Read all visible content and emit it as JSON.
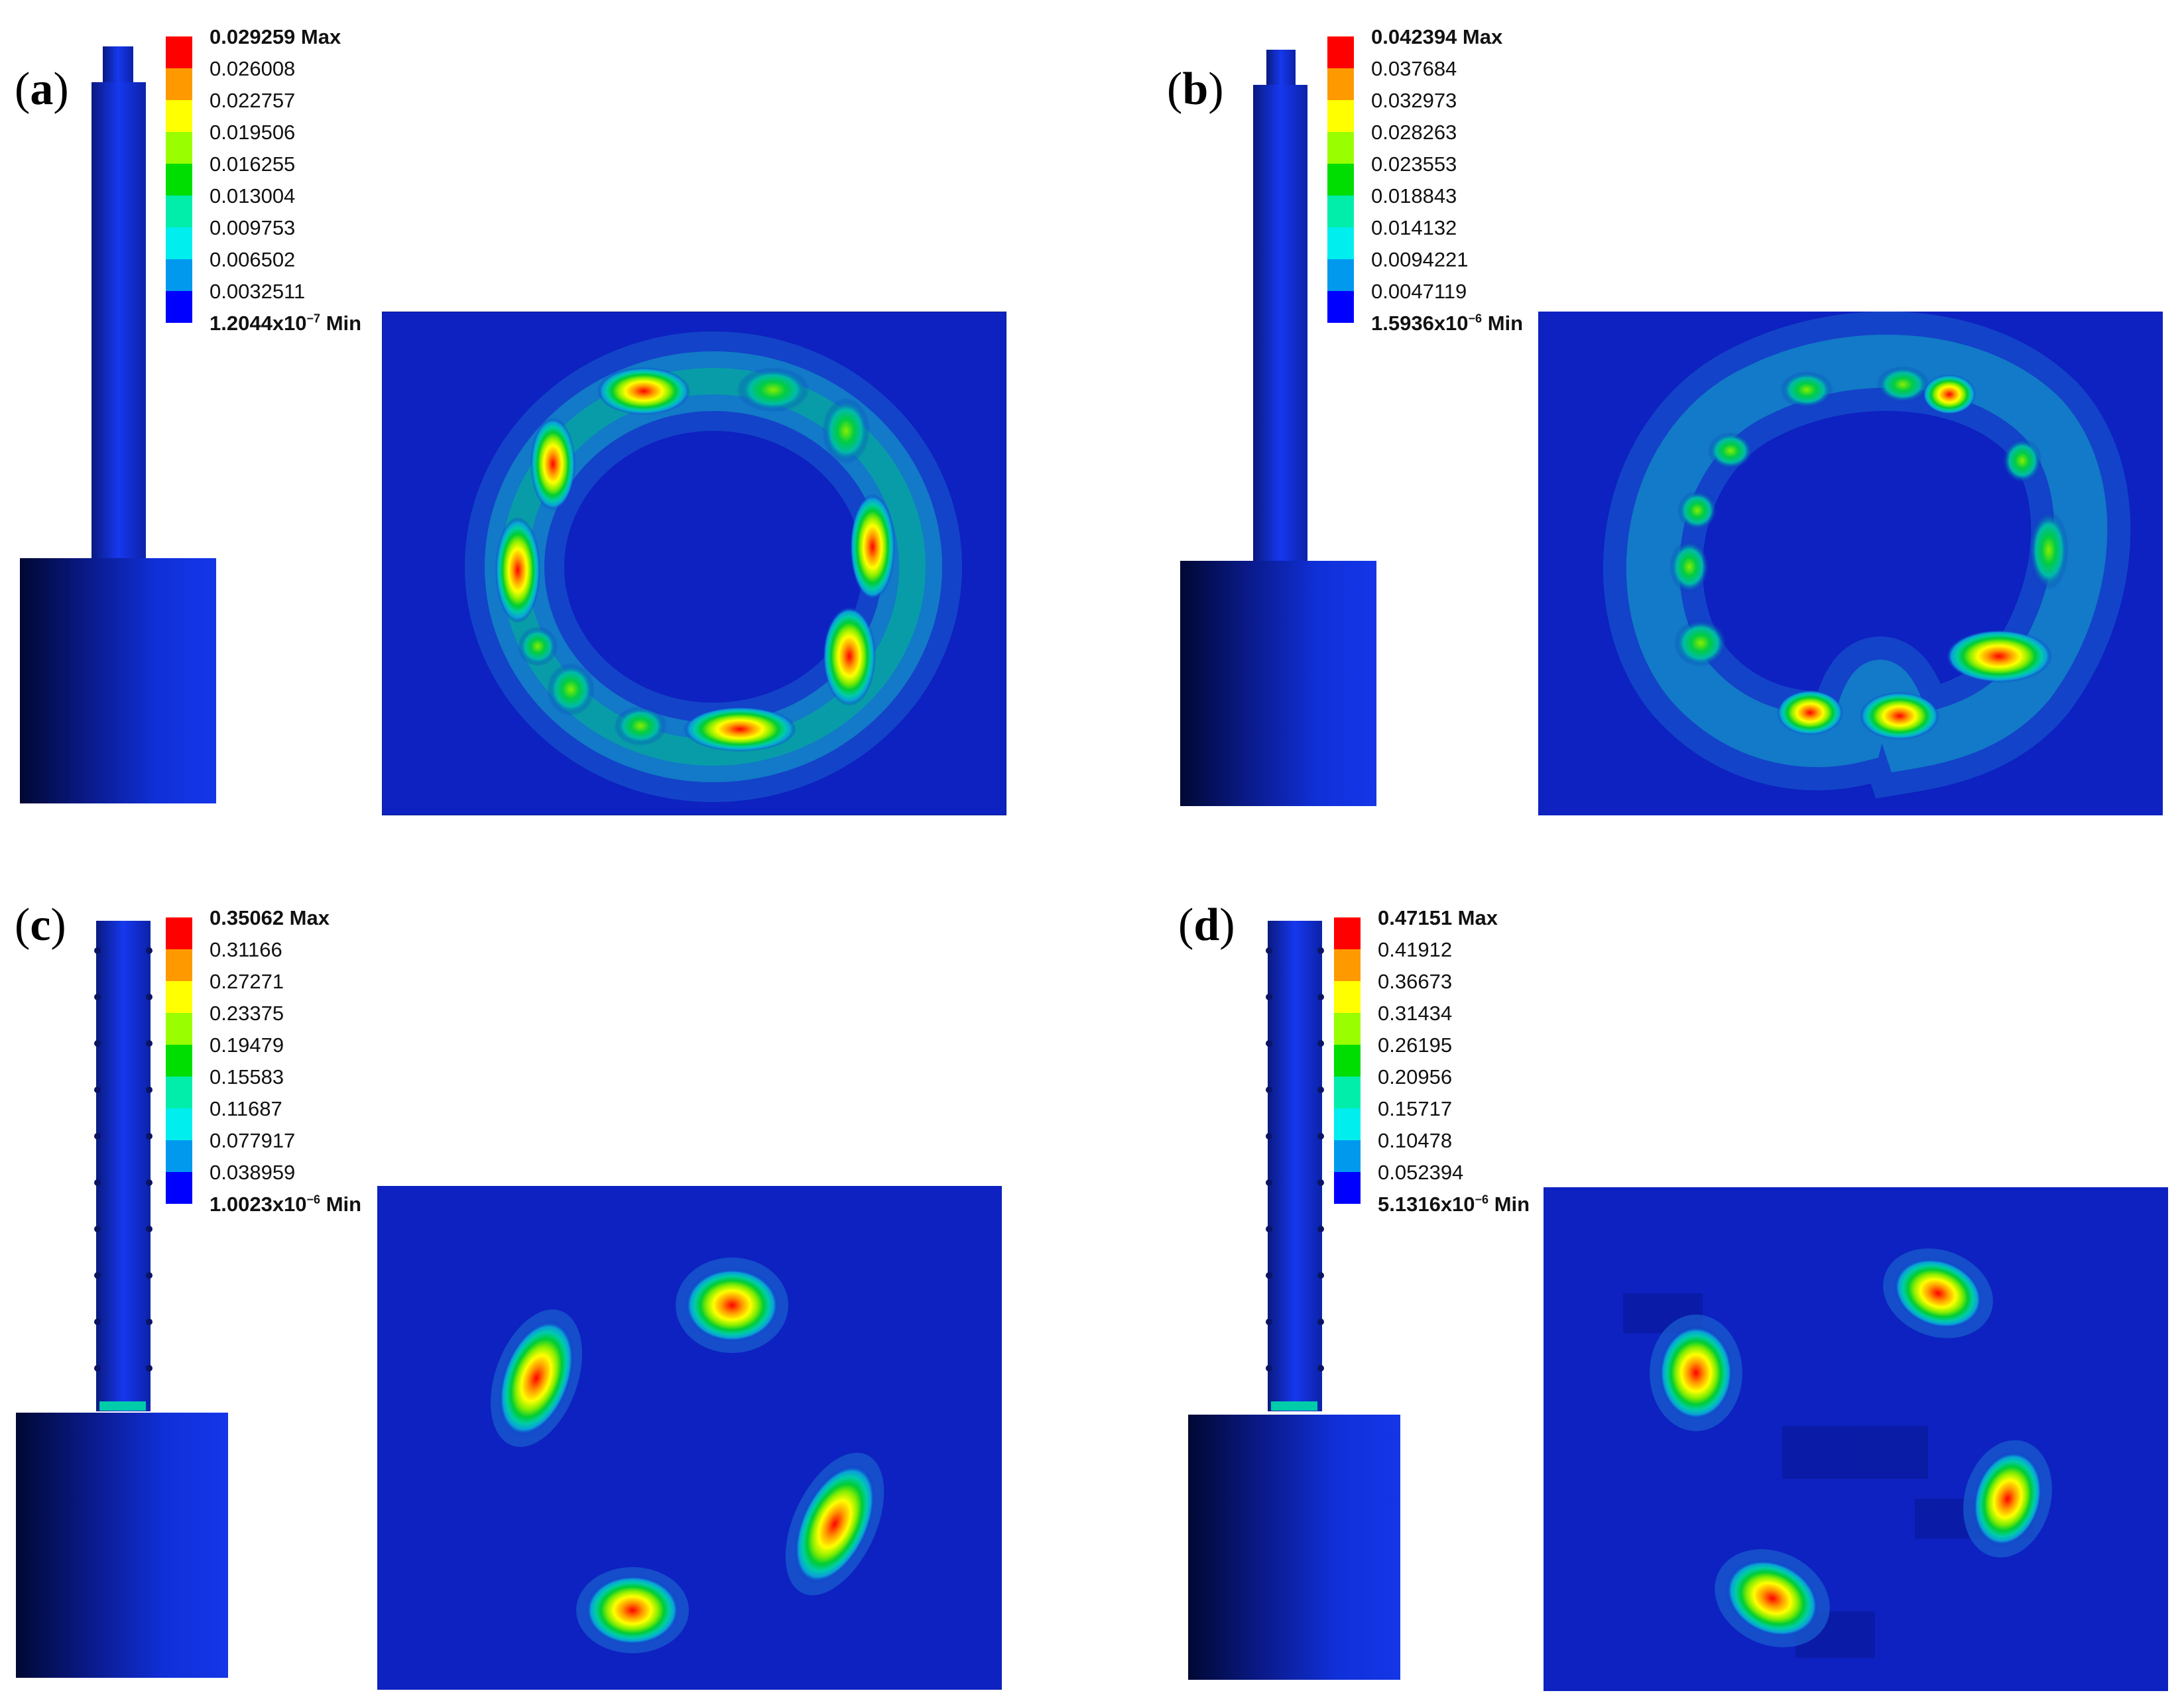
{
  "colors": {
    "legend": [
      "#ff0000",
      "#ff9900",
      "#ffff00",
      "#99ff00",
      "#00dd00",
      "#00eeaa",
      "#00eeee",
      "#0099ee",
      "#0000ff"
    ],
    "field_blue": "#0d22c0",
    "model_blue": "#1030d8",
    "model_dark": "#000833"
  },
  "panels": [
    {
      "label_open": "(",
      "label_letter": "a",
      "label_close": ")",
      "legend_max": "0.029259 Max",
      "legend_values": [
        "0.026008",
        "0.022757",
        "0.019506",
        "0.016255",
        "0.013004",
        "0.009753",
        "0.006502",
        "0.0032511"
      ],
      "legend_min_base": "1.2044x10",
      "legend_min_exp": "−7",
      "legend_min_suffix": " Min",
      "pattern": "ring"
    },
    {
      "label_open": "(",
      "label_letter": "b",
      "label_close": ")",
      "legend_max": "0.042394 Max",
      "legend_values": [
        "0.037684",
        "0.032973",
        "0.028263",
        "0.023553",
        "0.018843",
        "0.014132",
        "0.0094221",
        "0.0047119"
      ],
      "legend_min_base": "1.5936x10",
      "legend_min_exp": "−6",
      "legend_min_suffix": " Min",
      "pattern": "ring-broken"
    },
    {
      "label_open": "(",
      "label_letter": "c",
      "label_close": ")",
      "legend_max": "0.35062 Max",
      "legend_values": [
        "0.31166",
        "0.27271",
        "0.23375",
        "0.19479",
        "0.15583",
        "0.11687",
        "0.077917",
        "0.038959"
      ],
      "legend_min_base": "1.0023x10",
      "legend_min_exp": "−6",
      "legend_min_suffix": " Min",
      "pattern": "four-spots"
    },
    {
      "label_open": "(",
      "label_letter": "d",
      "label_close": ")",
      "legend_max": "0.47151 Max",
      "legend_values": [
        "0.41912",
        "0.36673",
        "0.31434",
        "0.26195",
        "0.20956",
        "0.15717",
        "0.10478",
        "0.052394"
      ],
      "legend_min_base": "5.1316x10",
      "legend_min_exp": "−6",
      "legend_min_suffix": " Min",
      "pattern": "four-spots"
    }
  ]
}
